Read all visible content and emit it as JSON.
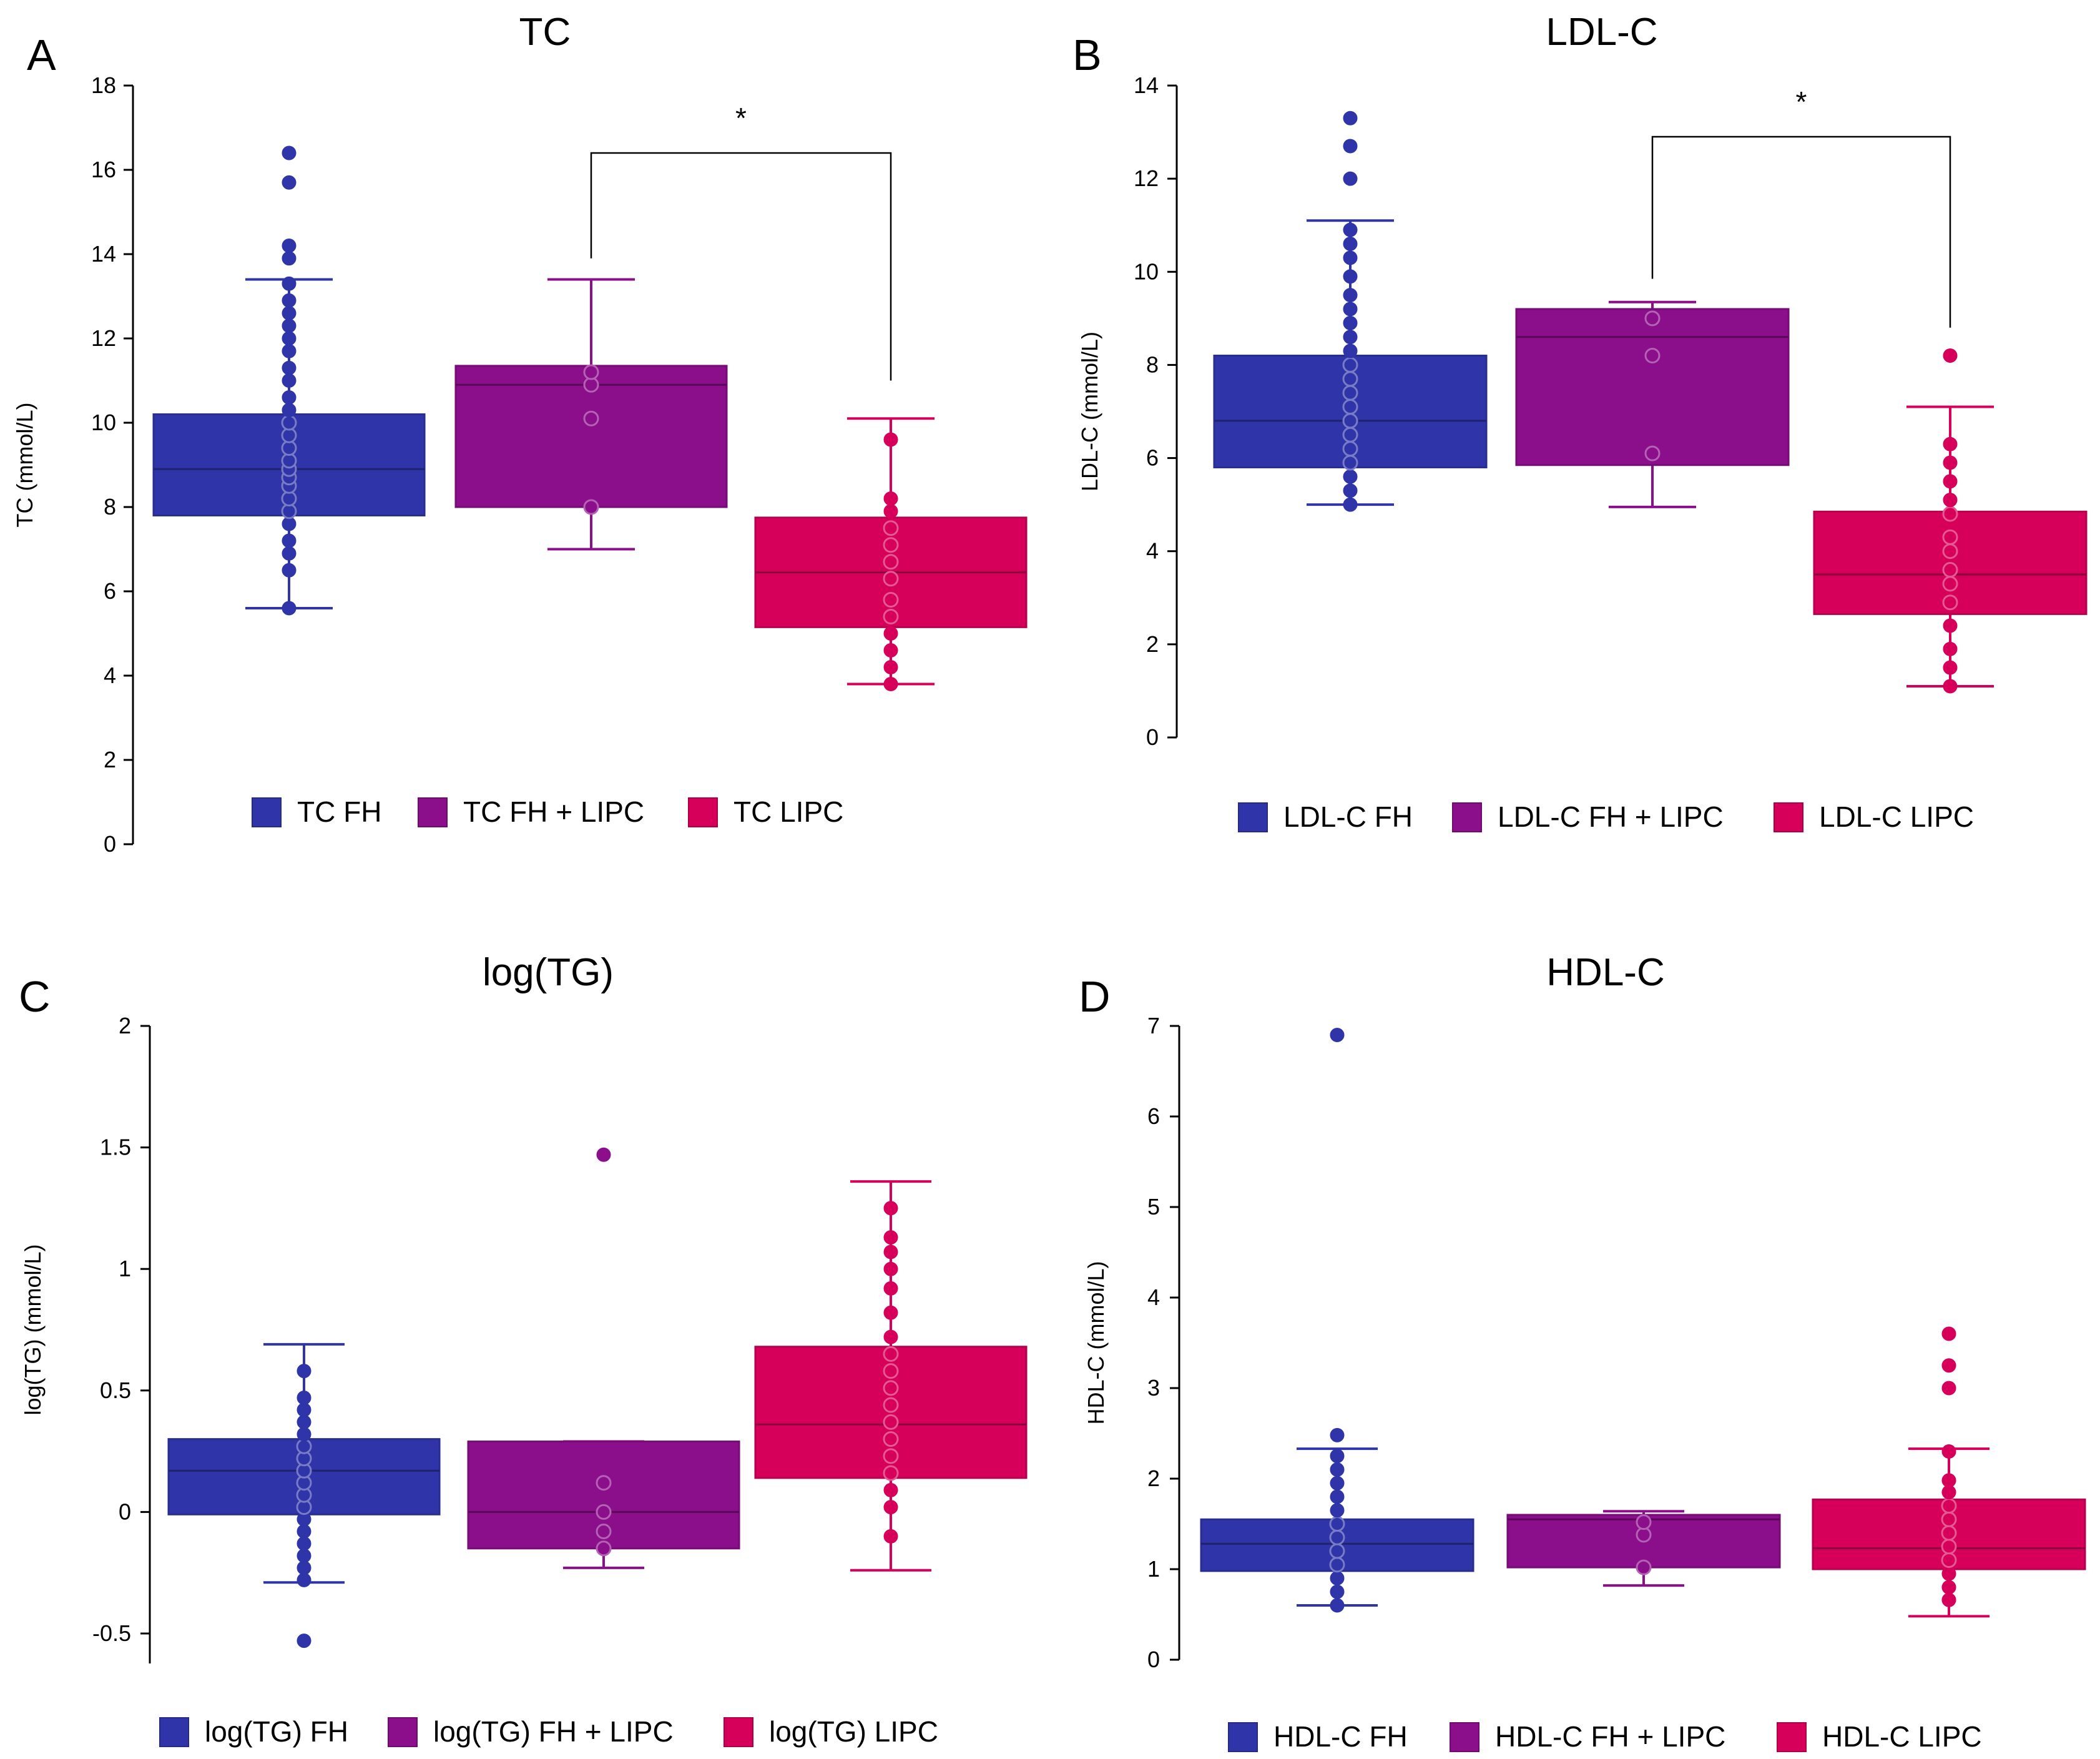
{
  "colors": {
    "fh": "#2F35A8",
    "fh_lipc": "#8B0E8B",
    "lipc": "#D6005A",
    "axis": "#000000"
  },
  "chart_data": [
    {
      "type": "box",
      "panel_label": "A",
      "title": "TC",
      "ylabel": "TC (mmol/L)",
      "ylim": [
        0,
        18
      ],
      "yticks": [
        0,
        2,
        4,
        6,
        8,
        10,
        12,
        14,
        16,
        18
      ],
      "ytick_labels": [
        "0",
        "2",
        "4",
        "6",
        "8",
        "10",
        "12",
        "14",
        "16",
        "18"
      ],
      "legend": [
        "TC FH",
        "TC FH + LIPC",
        "TC LIPC"
      ],
      "significance": {
        "from": 1,
        "to": 2,
        "label": "*",
        "y": 16.4,
        "left_end": 13.9,
        "right_end": 11.0
      },
      "groups": [
        {
          "name": "TC FH",
          "q1": 7.8,
          "median": 8.9,
          "q3": 10.2,
          "whisker_low": 5.6,
          "whisker_high": 13.4,
          "points": [
            5.6,
            6.5,
            6.9,
            7.2,
            7.6,
            7.9,
            8.2,
            8.5,
            8.7,
            8.9,
            9.1,
            9.4,
            9.7,
            10.0,
            10.3,
            10.6,
            11.0,
            11.3,
            11.7,
            12.0,
            12.3,
            12.6,
            12.9,
            13.3,
            13.9,
            14.2,
            15.7,
            16.4
          ]
        },
        {
          "name": "TC FH + LIPC",
          "q1": 8.0,
          "median": 10.9,
          "q3": 11.35,
          "whisker_low": 7.0,
          "whisker_high": 13.4,
          "points": [
            8.0,
            10.1,
            10.9,
            11.2
          ]
        },
        {
          "name": "TC LIPC",
          "q1": 5.15,
          "median": 6.45,
          "q3": 7.75,
          "whisker_low": 3.8,
          "whisker_high": 10.1,
          "points": [
            3.8,
            4.2,
            4.6,
            5.0,
            5.4,
            5.8,
            6.3,
            6.7,
            7.1,
            7.5,
            7.9,
            8.2,
            9.6
          ]
        }
      ]
    },
    {
      "type": "box",
      "panel_label": "B",
      "title": "LDL-C",
      "ylabel": "LDL-C (mmol/L)",
      "ylim": [
        0,
        14
      ],
      "yticks": [
        0,
        2,
        4,
        6,
        8,
        10,
        12,
        14
      ],
      "ytick_labels": [
        "0",
        "2",
        "4",
        "6",
        "8",
        "10",
        "12",
        "14"
      ],
      "legend": [
        "LDL-C FH",
        "LDL-C FH + LIPC",
        "LDL-C LIPC"
      ],
      "significance": {
        "from": 1,
        "to": 2,
        "label": "*",
        "y": 12.9,
        "left_end": 9.85,
        "right_end": 8.8
      },
      "groups": [
        {
          "name": "LDL-C FH",
          "q1": 5.8,
          "median": 6.8,
          "q3": 8.2,
          "whisker_low": 5.0,
          "whisker_high": 11.1,
          "points": [
            5.0,
            5.3,
            5.6,
            5.9,
            6.2,
            6.5,
            6.8,
            7.1,
            7.4,
            7.7,
            8.0,
            8.3,
            8.6,
            8.9,
            9.2,
            9.5,
            9.9,
            10.3,
            10.6,
            10.9,
            12.0,
            12.7,
            13.3
          ]
        },
        {
          "name": "LDL-C FH + LIPC",
          "q1": 5.85,
          "median": 8.6,
          "q3": 9.2,
          "whisker_low": 4.95,
          "whisker_high": 9.35,
          "points": [
            6.1,
            8.2,
            9.0
          ]
        },
        {
          "name": "LDL-C LIPC",
          "q1": 2.65,
          "median": 3.5,
          "q3": 4.85,
          "whisker_low": 1.1,
          "whisker_high": 7.1,
          "points": [
            1.1,
            1.5,
            1.9,
            2.4,
            2.9,
            3.3,
            3.6,
            4.0,
            4.3,
            4.8,
            5.1,
            5.5,
            5.9,
            6.3,
            8.2
          ]
        }
      ]
    },
    {
      "type": "box",
      "panel_label": "C",
      "title": "log(TG)",
      "ylabel": "log(TG) (mmol/L)",
      "ylim": [
        -0.55,
        2
      ],
      "yticks": [
        -0.5,
        0,
        0.5,
        1,
        1.5,
        2
      ],
      "ytick_labels": [
        "-0.5",
        "0",
        "0.5",
        "1",
        "1.5",
        "2"
      ],
      "legend": [
        "log(TG) FH",
        "log(TG) FH + LIPC",
        "log(TG) LIPC"
      ],
      "groups": [
        {
          "name": "log(TG) FH",
          "q1": -0.01,
          "median": 0.17,
          "q3": 0.3,
          "whisker_low": -0.29,
          "whisker_high": 0.69,
          "points": [
            -0.53,
            -0.28,
            -0.23,
            -0.18,
            -0.13,
            -0.08,
            -0.03,
            0.02,
            0.07,
            0.12,
            0.17,
            0.22,
            0.27,
            0.32,
            0.37,
            0.42,
            0.47,
            0.58
          ]
        },
        {
          "name": "log(TG) FH + LIPC",
          "q1": -0.15,
          "median": 0.0,
          "q3": 0.29,
          "whisker_low": -0.23,
          "whisker_high": 0.29,
          "points": [
            -0.15,
            -0.08,
            0.0,
            0.12,
            1.47
          ]
        },
        {
          "name": "log(TG) LIPC",
          "q1": 0.14,
          "median": 0.36,
          "q3": 0.68,
          "whisker_low": -0.24,
          "whisker_high": 1.36,
          "points": [
            -0.1,
            0.02,
            0.09,
            0.16,
            0.23,
            0.3,
            0.37,
            0.44,
            0.51,
            0.58,
            0.65,
            0.72,
            0.82,
            0.92,
            1.0,
            1.07,
            1.13,
            1.25
          ]
        }
      ]
    },
    {
      "type": "box",
      "panel_label": "D",
      "title": "HDL-C",
      "ylabel": "HDL-C (mmol/L)",
      "ylim": [
        0,
        7
      ],
      "yticks": [
        0,
        1,
        2,
        3,
        4,
        5,
        6,
        7
      ],
      "ytick_labels": [
        "0",
        "1",
        "2",
        "3",
        "4",
        "5",
        "6",
        "7"
      ],
      "legend": [
        "HDL-C FH",
        "HDL-C FH + LIPC",
        "HDL-C LIPC"
      ],
      "groups": [
        {
          "name": "HDL-C FH",
          "q1": 0.98,
          "median": 1.28,
          "q3": 1.55,
          "whisker_low": 0.6,
          "whisker_high": 2.33,
          "points": [
            0.6,
            0.75,
            0.9,
            1.05,
            1.2,
            1.35,
            1.5,
            1.65,
            1.8,
            1.95,
            2.1,
            2.25,
            2.48,
            6.9
          ]
        },
        {
          "name": "HDL-C FH + LIPC",
          "q1": 1.02,
          "median": 1.55,
          "q3": 1.6,
          "whisker_low": 0.82,
          "whisker_high": 1.64,
          "points": [
            1.02,
            1.38,
            1.52
          ]
        },
        {
          "name": "HDL-C LIPC",
          "q1": 1.0,
          "median": 1.23,
          "q3": 1.77,
          "whisker_low": 0.48,
          "whisker_high": 2.33,
          "points": [
            0.66,
            0.8,
            0.95,
            1.1,
            1.25,
            1.4,
            1.55,
            1.7,
            1.85,
            1.98,
            2.3,
            3.0,
            3.25,
            3.6
          ]
        }
      ]
    }
  ]
}
